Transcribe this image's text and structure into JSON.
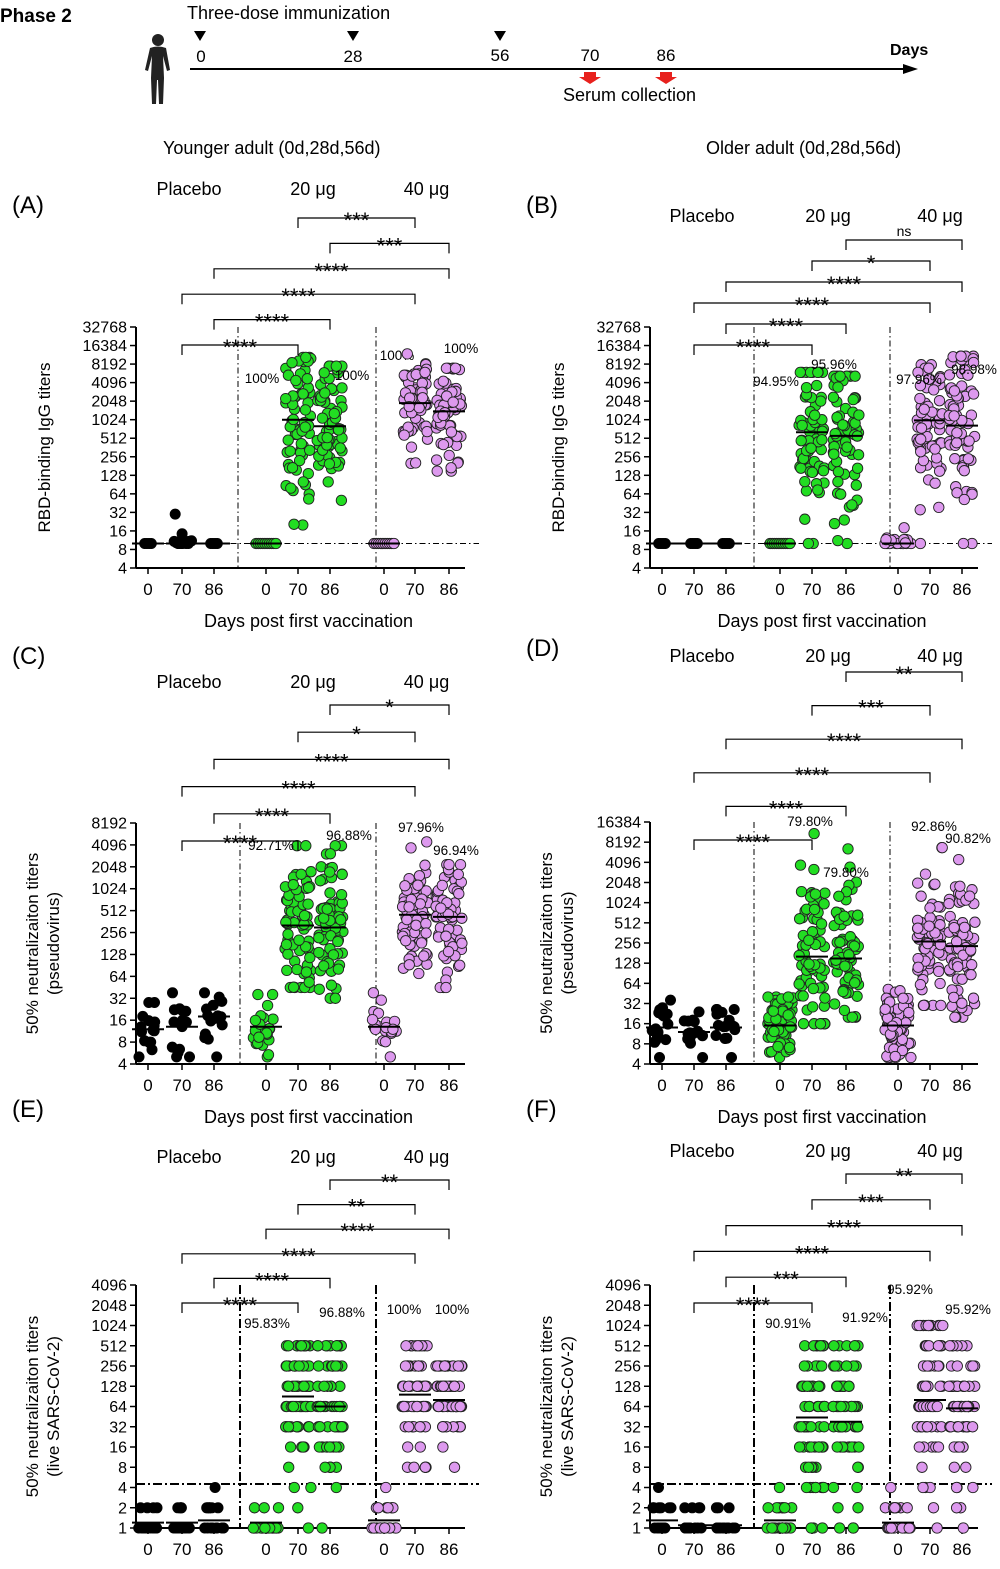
{
  "header": {
    "phase": "Phase 2",
    "regimen": "Three-dose immunization",
    "dose_days": [
      "0",
      "28",
      "56"
    ],
    "collection_days": [
      "70",
      "86"
    ],
    "axis_label": "Days",
    "collection_label": "Serum collection"
  },
  "columns": {
    "left": "Younger adult (0d,28d,56d)",
    "right": "Older adult (0d,28d,56d)"
  },
  "colors": {
    "placebo": "#000000",
    "dose20": "#22dd22",
    "dose40": "#dd99ee",
    "arrow_red": "#e8211d",
    "mark_stroke": "#222222"
  },
  "chart_data": [
    {
      "id": "A",
      "type": "scatter",
      "panel_label": "(A)",
      "ylabel": "RBD-binding IgG titers",
      "xlabel": "Days post first vaccination",
      "yscale": "log2",
      "ylim": [
        4,
        32768
      ],
      "yticks": [
        "4",
        "8",
        "16",
        "32",
        "64",
        "128",
        "256",
        "512",
        "1024",
        "2048",
        "4096",
        "8192",
        "16384",
        "32768"
      ],
      "lod": 10,
      "group_labels": [
        "Placebo",
        "20 μg",
        "40 μg"
      ],
      "categories": [
        "0",
        "70",
        "86",
        "0",
        "70",
        "86",
        "0",
        "70",
        "86"
      ],
      "series": [
        {
          "group": "Placebo",
          "day": "0",
          "gmt": 10,
          "min": 10,
          "max": 10,
          "pct": ""
        },
        {
          "group": "Placebo",
          "day": "70",
          "gmt": 10,
          "min": 10,
          "max": 30,
          "pct": ""
        },
        {
          "group": "Placebo",
          "day": "86",
          "gmt": 10,
          "min": 10,
          "max": 10,
          "pct": ""
        },
        {
          "group": "20 μg",
          "day": "0",
          "gmt": 10,
          "min": 10,
          "max": 10,
          "pct": "100%"
        },
        {
          "group": "20 μg",
          "day": "70",
          "gmt": 1024,
          "min": 20,
          "max": 10500,
          "pct": ""
        },
        {
          "group": "20 μg",
          "day": "86",
          "gmt": 800,
          "min": 50,
          "max": 7600,
          "pct": "100%"
        },
        {
          "group": "40 μg",
          "day": "0",
          "gmt": 10,
          "min": 10,
          "max": 10,
          "pct": "100%"
        },
        {
          "group": "40 μg",
          "day": "70",
          "gmt": 1900,
          "min": 200,
          "max": 12000,
          "pct": ""
        },
        {
          "group": "40 μg",
          "day": "86",
          "gmt": 1400,
          "min": 150,
          "max": 7000,
          "pct": "100%"
        }
      ],
      "comparisons": [
        {
          "from": 4,
          "to": 7,
          "label": "***"
        },
        {
          "from": 5,
          "to": 8,
          "label": "***"
        },
        {
          "from": 2,
          "to": 8,
          "label": "****"
        },
        {
          "from": 1,
          "to": 7,
          "label": "****"
        },
        {
          "from": 2,
          "to": 5,
          "label": "****"
        },
        {
          "from": 1,
          "to": 4,
          "label": "****"
        }
      ]
    },
    {
      "id": "B",
      "type": "scatter",
      "panel_label": "(B)",
      "ylabel": "RBD-binding IgG titers",
      "xlabel": "Days post first vaccination",
      "yscale": "log2",
      "ylim": [
        4,
        32768
      ],
      "yticks": [
        "4",
        "8",
        "16",
        "32",
        "64",
        "128",
        "256",
        "512",
        "1024",
        "2048",
        "4096",
        "8192",
        "16384",
        "32768"
      ],
      "lod": 10,
      "group_labels": [
        "Placebo",
        "20 μg",
        "40 μg"
      ],
      "categories": [
        "0",
        "70",
        "86",
        "0",
        "70",
        "86",
        "0",
        "70",
        "86"
      ],
      "series": [
        {
          "group": "Placebo",
          "day": "0",
          "gmt": 10,
          "min": 10,
          "max": 10,
          "pct": ""
        },
        {
          "group": "Placebo",
          "day": "70",
          "gmt": 10,
          "min": 10,
          "max": 10,
          "pct": ""
        },
        {
          "group": "Placebo",
          "day": "86",
          "gmt": 10,
          "min": 10,
          "max": 10,
          "pct": ""
        },
        {
          "group": "20 μg",
          "day": "0",
          "gmt": 10,
          "min": 10,
          "max": 10,
          "pct": ""
        },
        {
          "group": "20 μg",
          "day": "70",
          "gmt": 640,
          "min": 10,
          "max": 6000,
          "pct": "94.95%"
        },
        {
          "group": "20 μg",
          "day": "86",
          "gmt": 560,
          "min": 10,
          "max": 5200,
          "pct": "95.96%"
        },
        {
          "group": "40 μg",
          "day": "0",
          "gmt": 10,
          "min": 10,
          "max": 18,
          "pct": ""
        },
        {
          "group": "40 μg",
          "day": "70",
          "gmt": 1000,
          "min": 10,
          "max": 8000,
          "pct": "97.96%"
        },
        {
          "group": "40 μg",
          "day": "86",
          "gmt": 820,
          "min": 10,
          "max": 11000,
          "pct": "98.98%"
        }
      ],
      "comparisons": [
        {
          "from": 5,
          "to": 8,
          "label": "ns"
        },
        {
          "from": 4,
          "to": 7,
          "label": "*"
        },
        {
          "from": 2,
          "to": 8,
          "label": "****"
        },
        {
          "from": 1,
          "to": 7,
          "label": "****"
        },
        {
          "from": 2,
          "to": 5,
          "label": "****"
        },
        {
          "from": 1,
          "to": 4,
          "label": "****"
        }
      ]
    },
    {
      "id": "C",
      "type": "scatter",
      "panel_label": "(C)",
      "ylabel": "50% neutralizaiton titers",
      "ylabel2": "(pseudovirus)",
      "xlabel": "Days post first vaccination",
      "yscale": "log2",
      "ylim": [
        4,
        8192
      ],
      "yticks": [
        "4",
        "8",
        "16",
        "32",
        "64",
        "128",
        "256",
        "512",
        "1024",
        "2048",
        "4096",
        "8192"
      ],
      "lod": null,
      "group_labels": [
        "Placebo",
        "20 μg",
        "40 μg"
      ],
      "categories": [
        "0",
        "70",
        "86",
        "0",
        "70",
        "86",
        "0",
        "70",
        "86"
      ],
      "series": [
        {
          "group": "Placebo",
          "day": "0",
          "gmt": 12,
          "min": 5,
          "max": 28,
          "pct": ""
        },
        {
          "group": "Placebo",
          "day": "70",
          "gmt": 13,
          "min": 5,
          "max": 38,
          "pct": ""
        },
        {
          "group": "Placebo",
          "day": "86",
          "gmt": 18,
          "min": 5,
          "max": 38,
          "pct": ""
        },
        {
          "group": "20 μg",
          "day": "0",
          "gmt": 13,
          "min": 5,
          "max": 36,
          "pct": ""
        },
        {
          "group": "20 μg",
          "day": "70",
          "gmt": 320,
          "min": 45,
          "max": 4000,
          "pct": "92.71%"
        },
        {
          "group": "20 μg",
          "day": "86",
          "gmt": 300,
          "min": 32,
          "max": 4000,
          "pct": "96.88%"
        },
        {
          "group": "40 μg",
          "day": "0",
          "gmt": 13,
          "min": 5,
          "max": 38,
          "pct": ""
        },
        {
          "group": "40 μg",
          "day": "70",
          "gmt": 450,
          "min": 70,
          "max": 4500,
          "pct": "97.96%"
        },
        {
          "group": "40 μg",
          "day": "86",
          "gmt": 420,
          "min": 45,
          "max": 2200,
          "pct": "96.94%"
        }
      ],
      "comparisons": [
        {
          "from": 5,
          "to": 8,
          "label": "*"
        },
        {
          "from": 4,
          "to": 7,
          "label": "*"
        },
        {
          "from": 2,
          "to": 8,
          "label": "****"
        },
        {
          "from": 1,
          "to": 7,
          "label": "****"
        },
        {
          "from": 2,
          "to": 5,
          "label": "****"
        },
        {
          "from": 1,
          "to": 4,
          "label": "****"
        }
      ]
    },
    {
      "id": "D",
      "type": "scatter",
      "panel_label": "(D)",
      "ylabel": "50% neutralizaiton titers",
      "ylabel2": "(pseudovirus)",
      "xlabel": "Days post first vaccination",
      "yscale": "log2",
      "ylim": [
        4,
        16384
      ],
      "yticks": [
        "4",
        "8",
        "16",
        "32",
        "64",
        "128",
        "256",
        "512",
        "1024",
        "2048",
        "4096",
        "8192",
        "16384"
      ],
      "lod": null,
      "group_labels": [
        "Placebo",
        "20 μg",
        "40 μg"
      ],
      "categories": [
        "0",
        "70",
        "86",
        "0",
        "70",
        "86",
        "0",
        "70",
        "86"
      ],
      "series": [
        {
          "group": "Placebo",
          "day": "0",
          "gmt": 14,
          "min": 5,
          "max": 36,
          "pct": ""
        },
        {
          "group": "Placebo",
          "day": "70",
          "gmt": 12,
          "min": 5,
          "max": 24,
          "pct": ""
        },
        {
          "group": "Placebo",
          "day": "86",
          "gmt": 14,
          "min": 5,
          "max": 26,
          "pct": ""
        },
        {
          "group": "20 μg",
          "day": "0",
          "gmt": 15,
          "min": 5,
          "max": 40,
          "pct": ""
        },
        {
          "group": "20 μg",
          "day": "70",
          "gmt": 160,
          "min": 16,
          "max": 11000,
          "pct": "79.80%"
        },
        {
          "group": "20 μg",
          "day": "86",
          "gmt": 150,
          "min": 20,
          "max": 6500,
          "pct": "79.80%"
        },
        {
          "group": "40 μg",
          "day": "0",
          "gmt": 15,
          "min": 5,
          "max": 52,
          "pct": ""
        },
        {
          "group": "40 μg",
          "day": "70",
          "gmt": 270,
          "min": 30,
          "max": 6800,
          "pct": "92.86%"
        },
        {
          "group": "40 μg",
          "day": "86",
          "gmt": 230,
          "min": 20,
          "max": 4500,
          "pct": "90.82%"
        }
      ],
      "comparisons": [
        {
          "from": 5,
          "to": 8,
          "label": "**"
        },
        {
          "from": 4,
          "to": 7,
          "label": "***"
        },
        {
          "from": 2,
          "to": 8,
          "label": "****"
        },
        {
          "from": 1,
          "to": 7,
          "label": "****"
        },
        {
          "from": 2,
          "to": 5,
          "label": "****"
        },
        {
          "from": 1,
          "to": 4,
          "label": "****"
        }
      ]
    },
    {
      "id": "E",
      "type": "scatter",
      "panel_label": "(E)",
      "ylabel": "50% neutralizaiton titers",
      "ylabel2": "(live SARS-CoV-2)",
      "xlabel": "Days post first vaccination",
      "yscale": "log2",
      "ylim": [
        1,
        4096
      ],
      "yticks": [
        "1",
        "2",
        "4",
        "8",
        "16",
        "32",
        "64",
        "128",
        "256",
        "512",
        "1024",
        "2048",
        "4096"
      ],
      "lod": 4.5,
      "group_labels": [
        "Placebo",
        "20 μg",
        "40 μg"
      ],
      "categories": [
        "0",
        "70",
        "86",
        "0",
        "70",
        "86",
        "0",
        "70",
        "86"
      ],
      "series": [
        {
          "group": "Placebo",
          "day": "0",
          "gmt": 1.2,
          "min": 1,
          "max": 2,
          "pct": ""
        },
        {
          "group": "Placebo",
          "day": "70",
          "gmt": 1.2,
          "min": 1,
          "max": 2,
          "pct": ""
        },
        {
          "group": "Placebo",
          "day": "86",
          "gmt": 1.3,
          "min": 1,
          "max": 3,
          "pct": ""
        },
        {
          "group": "20 μg",
          "day": "0",
          "gmt": 1.2,
          "min": 1,
          "max": 2,
          "pct": ""
        },
        {
          "group": "20 μg",
          "day": "70",
          "gmt": 90,
          "min": 1,
          "max": 512,
          "pct": "95.83%"
        },
        {
          "group": "20 μg",
          "day": "86",
          "gmt": 64,
          "min": 1,
          "max": 512,
          "pct": "96.88%"
        },
        {
          "group": "40 μg",
          "day": "0",
          "gmt": 1.3,
          "min": 1,
          "max": 3,
          "pct": ""
        },
        {
          "group": "40 μg",
          "day": "70",
          "gmt": 96,
          "min": 8,
          "max": 512,
          "pct": "100%"
        },
        {
          "group": "40 μg",
          "day": "86",
          "gmt": 80,
          "min": 8,
          "max": 320,
          "pct": "100%"
        }
      ],
      "comparisons": [
        {
          "from": 5,
          "to": 8,
          "label": "**"
        },
        {
          "from": 4,
          "to": 7,
          "label": "**"
        },
        {
          "from": 3,
          "to": 8,
          "label": "****"
        },
        {
          "from": 1,
          "to": 7,
          "label": "****"
        },
        {
          "from": 2,
          "to": 5,
          "label": "****"
        },
        {
          "from": 1,
          "to": 4,
          "label": "****"
        }
      ]
    },
    {
      "id": "F",
      "type": "scatter",
      "panel_label": "(F)",
      "ylabel": "50% neutralizaiton titers",
      "ylabel2": "(live SARS-CoV-2)",
      "xlabel": "Days post first vaccination",
      "yscale": "log2",
      "ylim": [
        1,
        4096
      ],
      "yticks": [
        "1",
        "2",
        "4",
        "8",
        "16",
        "32",
        "64",
        "128",
        "256",
        "512",
        "1024",
        "2048",
        "4096"
      ],
      "lod": 4.5,
      "group_labels": [
        "Placebo",
        "20 μg",
        "40 μg"
      ],
      "categories": [
        "0",
        "70",
        "86",
        "0",
        "70",
        "86",
        "0",
        "70",
        "86"
      ],
      "series": [
        {
          "group": "Placebo",
          "day": "0",
          "gmt": 1.3,
          "min": 1,
          "max": 3,
          "pct": ""
        },
        {
          "group": "Placebo",
          "day": "70",
          "gmt": 1.1,
          "min": 1,
          "max": 2,
          "pct": ""
        },
        {
          "group": "Placebo",
          "day": "86",
          "gmt": 1.1,
          "min": 1,
          "max": 2,
          "pct": ""
        },
        {
          "group": "20 μg",
          "day": "0",
          "gmt": 1.3,
          "min": 1,
          "max": 3,
          "pct": ""
        },
        {
          "group": "20 μg",
          "day": "70",
          "gmt": 44,
          "min": 1,
          "max": 512,
          "pct": "90.91%"
        },
        {
          "group": "20 μg",
          "day": "86",
          "gmt": 38,
          "min": 1,
          "max": 380,
          "pct": "91.92%"
        },
        {
          "group": "40 μg",
          "day": "0",
          "gmt": 1.2,
          "min": 1,
          "max": 3,
          "pct": ""
        },
        {
          "group": "40 μg",
          "day": "70",
          "gmt": 80,
          "min": 1,
          "max": 1024,
          "pct": "95.92%"
        },
        {
          "group": "40 μg",
          "day": "86",
          "gmt": 60,
          "min": 1,
          "max": 512,
          "pct": "95.92%"
        }
      ],
      "comparisons": [
        {
          "from": 5,
          "to": 8,
          "label": "**"
        },
        {
          "from": 4,
          "to": 7,
          "label": "***"
        },
        {
          "from": 2,
          "to": 8,
          "label": "****"
        },
        {
          "from": 1,
          "to": 7,
          "label": "****"
        },
        {
          "from": 2,
          "to": 5,
          "label": "***"
        },
        {
          "from": 1,
          "to": 4,
          "label": "****"
        }
      ]
    }
  ]
}
